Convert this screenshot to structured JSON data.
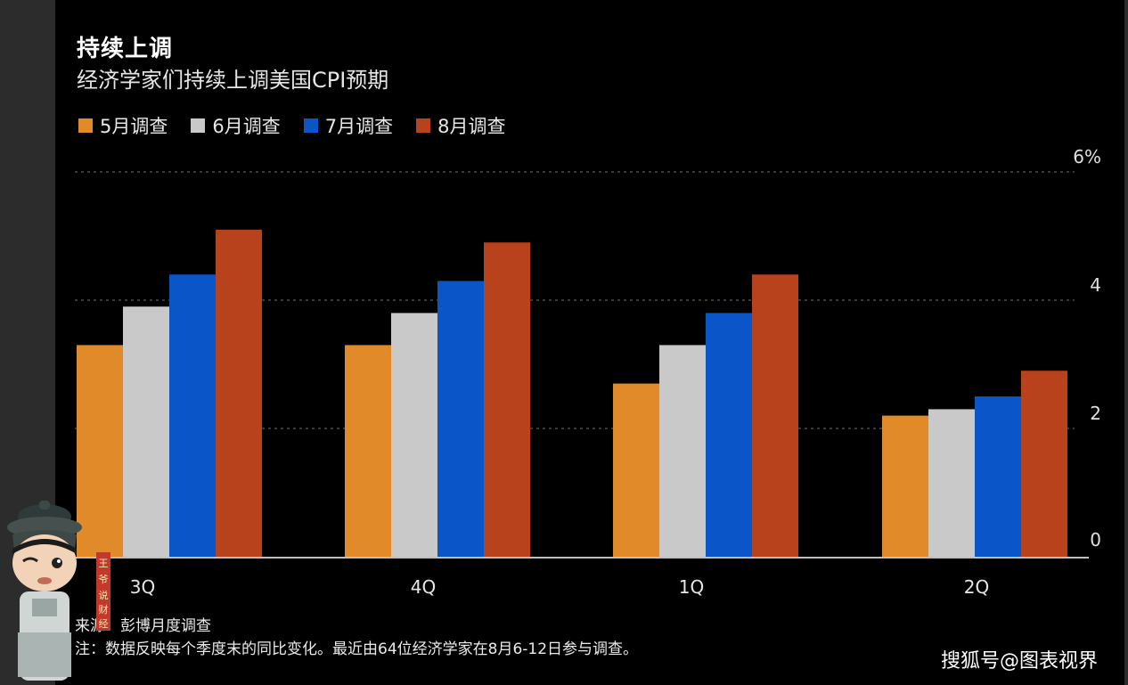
{
  "title": "持续上调",
  "subtitle": "经济学家们持续上调美国CPI预期",
  "notes": {
    "source": "来源：彭博月度调查",
    "note": "注：数据反映每个季度末的同比变化。最近由64位经济学家在8月6-12日参与调查。"
  },
  "watermark": "搜狐号@图表视界",
  "mascot": {
    "seal_text": "王爷说财经"
  },
  "colors": {
    "background": "#000000",
    "grid": "#5a5a5a",
    "axis": "#bfbfbf"
  },
  "chart_data": {
    "type": "bar",
    "categories": [
      "3Q",
      "4Q",
      "1Q",
      "2Q"
    ],
    "series": [
      {
        "name": "5月调查",
        "color": "#e08a2a",
        "values": [
          3.3,
          3.3,
          2.7,
          2.2
        ]
      },
      {
        "name": "6月调查",
        "color": "#c9c9c9",
        "values": [
          3.9,
          3.8,
          3.3,
          2.3
        ]
      },
      {
        "name": "7月调查",
        "color": "#0a55c8",
        "values": [
          4.4,
          4.3,
          3.8,
          2.5
        ]
      },
      {
        "name": "8月调查",
        "color": "#b8421c",
        "values": [
          5.1,
          4.9,
          4.4,
          2.9
        ]
      }
    ],
    "y_ticks": [
      {
        "value": 0,
        "label": "0"
      },
      {
        "value": 2,
        "label": "2"
      },
      {
        "value": 4,
        "label": "4"
      },
      {
        "value": 6,
        "label": "6%"
      }
    ],
    "ylim": [
      0,
      6
    ],
    "grid": true,
    "legend": "top-left",
    "y_axis_side": "right"
  }
}
